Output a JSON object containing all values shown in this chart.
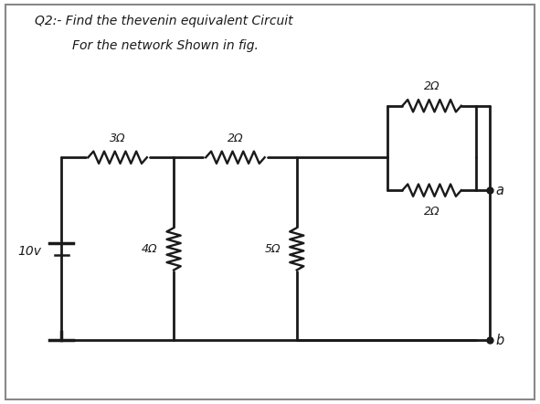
{
  "title_line1": "Q2:- Find the thevenin equivalent Circuit",
  "title_line2": "For the network Shown in fig.",
  "bg_color": "#ffffff",
  "border_color": "#888888",
  "line_color": "#1a1a1a",
  "text_color": "#1a1a1a",
  "labels": {
    "voltage_source": "10v",
    "R1": "3Ω",
    "R2": "2Ω",
    "R3": "4Ω",
    "R4": "5Ω",
    "R5": "2Ω",
    "R6": "2Ω",
    "node_a": "a",
    "node_b": "b"
  },
  "figsize": [
    5.91,
    4.42
  ],
  "dpi": 100
}
